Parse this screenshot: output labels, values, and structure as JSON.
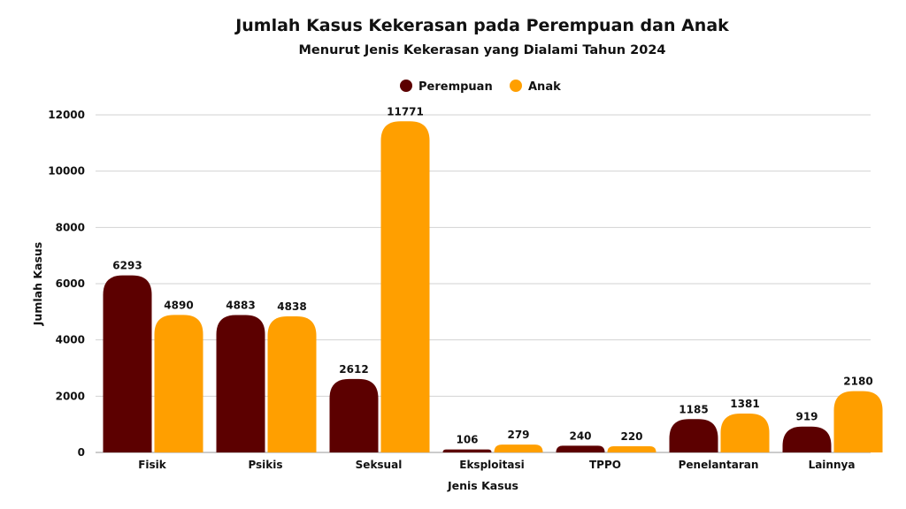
{
  "chart_data": {
    "type": "bar",
    "title": "Jumlah Kasus Kekerasan pada Perempuan dan Anak",
    "subtitle": "Menurut Jenis Kekerasan yang Dialami Tahun 2024",
    "xlabel": "Jenis Kasus",
    "ylabel": "Jumlah Kasus",
    "categories": [
      "Fisik",
      "Psikis",
      "Seksual",
      "Eksploitasi",
      "TPPO",
      "Penelantaran",
      "Lainnya"
    ],
    "series": [
      {
        "name": "Perempuan",
        "color": "#5c0000",
        "values": [
          6293,
          4883,
          2612,
          106,
          240,
          1185,
          919
        ]
      },
      {
        "name": "Anak",
        "color": "#ff9f00",
        "values": [
          4890,
          4838,
          11771,
          279,
          220,
          1381,
          2180
        ]
      }
    ],
    "ylim": [
      0,
      12000
    ],
    "yticks": [
      0,
      2000,
      4000,
      6000,
      8000,
      10000,
      12000
    ],
    "grid": true,
    "legend_position": "top-center"
  }
}
